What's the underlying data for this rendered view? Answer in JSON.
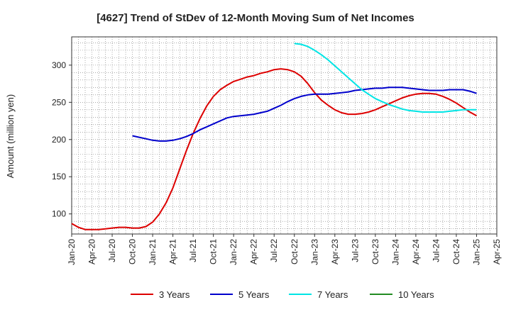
{
  "chart_data": {
    "type": "line",
    "title": "[4627]  Trend of StDev of 12-Month Moving Sum of Net Incomes",
    "xlabel": "",
    "ylabel": "Amount (million yen)",
    "ylim": [
      73,
      338
    ],
    "yticks": [
      100,
      150,
      200,
      250,
      300
    ],
    "xlim": [
      "2020-01",
      "2025-04"
    ],
    "xticks": [
      "Jan-20",
      "Apr-20",
      "Jul-20",
      "Oct-20",
      "Jan-21",
      "Apr-21",
      "Jul-21",
      "Oct-21",
      "Jan-22",
      "Apr-22",
      "Jul-22",
      "Oct-22",
      "Jan-23",
      "Apr-23",
      "Jul-23",
      "Oct-23",
      "Jan-24",
      "Apr-24",
      "Jul-24",
      "Oct-24",
      "Jan-25",
      "Apr-25"
    ],
    "grid": true,
    "legend_position": "bottom",
    "series": [
      {
        "name": "3 Years",
        "color": "#dd0000",
        "points": [
          [
            "2020-01",
            87
          ],
          [
            "2020-02",
            82
          ],
          [
            "2020-03",
            79
          ],
          [
            "2020-04",
            79
          ],
          [
            "2020-05",
            79
          ],
          [
            "2020-06",
            80
          ],
          [
            "2020-07",
            81
          ],
          [
            "2020-08",
            82
          ],
          [
            "2020-09",
            82
          ],
          [
            "2020-10",
            81
          ],
          [
            "2020-11",
            81
          ],
          [
            "2020-12",
            83
          ],
          [
            "2021-01",
            89
          ],
          [
            "2021-02",
            100
          ],
          [
            "2021-03",
            115
          ],
          [
            "2021-04",
            135
          ],
          [
            "2021-05",
            160
          ],
          [
            "2021-06",
            185
          ],
          [
            "2021-07",
            208
          ],
          [
            "2021-08",
            228
          ],
          [
            "2021-09",
            245
          ],
          [
            "2021-10",
            258
          ],
          [
            "2021-11",
            267
          ],
          [
            "2021-12",
            273
          ],
          [
            "2022-01",
            278
          ],
          [
            "2022-02",
            281
          ],
          [
            "2022-03",
            284
          ],
          [
            "2022-04",
            286
          ],
          [
            "2022-05",
            289
          ],
          [
            "2022-06",
            291
          ],
          [
            "2022-07",
            294
          ],
          [
            "2022-08",
            295
          ],
          [
            "2022-09",
            294
          ],
          [
            "2022-10",
            291
          ],
          [
            "2022-11",
            285
          ],
          [
            "2022-12",
            275
          ],
          [
            "2023-01",
            263
          ],
          [
            "2023-02",
            253
          ],
          [
            "2023-03",
            246
          ],
          [
            "2023-04",
            240
          ],
          [
            "2023-05",
            236
          ],
          [
            "2023-06",
            234
          ],
          [
            "2023-07",
            234
          ],
          [
            "2023-08",
            235
          ],
          [
            "2023-09",
            237
          ],
          [
            "2023-10",
            240
          ],
          [
            "2023-11",
            244
          ],
          [
            "2023-12",
            248
          ],
          [
            "2024-01",
            252
          ],
          [
            "2024-02",
            256
          ],
          [
            "2024-03",
            259
          ],
          [
            "2024-04",
            261
          ],
          [
            "2024-05",
            262
          ],
          [
            "2024-06",
            262
          ],
          [
            "2024-07",
            261
          ],
          [
            "2024-08",
            258
          ],
          [
            "2024-09",
            254
          ],
          [
            "2024-10",
            249
          ],
          [
            "2024-11",
            243
          ],
          [
            "2024-12",
            237
          ],
          [
            "2025-01",
            232
          ]
        ]
      },
      {
        "name": "5 Years",
        "color": "#0000cc",
        "points": [
          [
            "2020-10",
            205
          ],
          [
            "2020-11",
            203
          ],
          [
            "2020-12",
            201
          ],
          [
            "2021-01",
            199
          ],
          [
            "2021-02",
            198
          ],
          [
            "2021-03",
            198
          ],
          [
            "2021-04",
            199
          ],
          [
            "2021-05",
            201
          ],
          [
            "2021-06",
            204
          ],
          [
            "2021-07",
            208
          ],
          [
            "2021-08",
            213
          ],
          [
            "2021-09",
            217
          ],
          [
            "2021-10",
            221
          ],
          [
            "2021-11",
            225
          ],
          [
            "2021-12",
            229
          ],
          [
            "2022-01",
            231
          ],
          [
            "2022-02",
            232
          ],
          [
            "2022-03",
            233
          ],
          [
            "2022-04",
            234
          ],
          [
            "2022-05",
            236
          ],
          [
            "2022-06",
            238
          ],
          [
            "2022-07",
            242
          ],
          [
            "2022-08",
            246
          ],
          [
            "2022-09",
            251
          ],
          [
            "2022-10",
            255
          ],
          [
            "2022-11",
            258
          ],
          [
            "2022-12",
            260
          ],
          [
            "2023-01",
            261
          ],
          [
            "2023-02",
            261
          ],
          [
            "2023-03",
            261
          ],
          [
            "2023-04",
            262
          ],
          [
            "2023-05",
            263
          ],
          [
            "2023-06",
            264
          ],
          [
            "2023-07",
            266
          ],
          [
            "2023-08",
            267
          ],
          [
            "2023-09",
            268
          ],
          [
            "2023-10",
            269
          ],
          [
            "2023-11",
            269
          ],
          [
            "2023-12",
            270
          ],
          [
            "2024-01",
            270
          ],
          [
            "2024-02",
            270
          ],
          [
            "2024-03",
            269
          ],
          [
            "2024-04",
            268
          ],
          [
            "2024-05",
            267
          ],
          [
            "2024-06",
            266
          ],
          [
            "2024-07",
            266
          ],
          [
            "2024-08",
            266
          ],
          [
            "2024-09",
            267
          ],
          [
            "2024-10",
            267
          ],
          [
            "2024-11",
            267
          ],
          [
            "2024-12",
            265
          ],
          [
            "2025-01",
            262
          ]
        ]
      },
      {
        "name": "7 Years",
        "color": "#00e5e5",
        "points": [
          [
            "2022-10",
            329
          ],
          [
            "2022-11",
            328
          ],
          [
            "2022-12",
            325
          ],
          [
            "2023-01",
            320
          ],
          [
            "2023-02",
            314
          ],
          [
            "2023-03",
            307
          ],
          [
            "2023-04",
            299
          ],
          [
            "2023-05",
            291
          ],
          [
            "2023-06",
            283
          ],
          [
            "2023-07",
            275
          ],
          [
            "2023-08",
            267
          ],
          [
            "2023-09",
            261
          ],
          [
            "2023-10",
            255
          ],
          [
            "2023-11",
            251
          ],
          [
            "2023-12",
            247
          ],
          [
            "2024-01",
            244
          ],
          [
            "2024-02",
            241
          ],
          [
            "2024-03",
            239
          ],
          [
            "2024-04",
            238
          ],
          [
            "2024-05",
            237
          ],
          [
            "2024-06",
            237
          ],
          [
            "2024-07",
            237
          ],
          [
            "2024-08",
            237
          ],
          [
            "2024-09",
            238
          ],
          [
            "2024-10",
            239
          ],
          [
            "2024-11",
            240
          ],
          [
            "2024-12",
            240
          ],
          [
            "2025-01",
            240
          ]
        ]
      },
      {
        "name": "10 Years",
        "color": "#228b22",
        "points": []
      }
    ]
  }
}
